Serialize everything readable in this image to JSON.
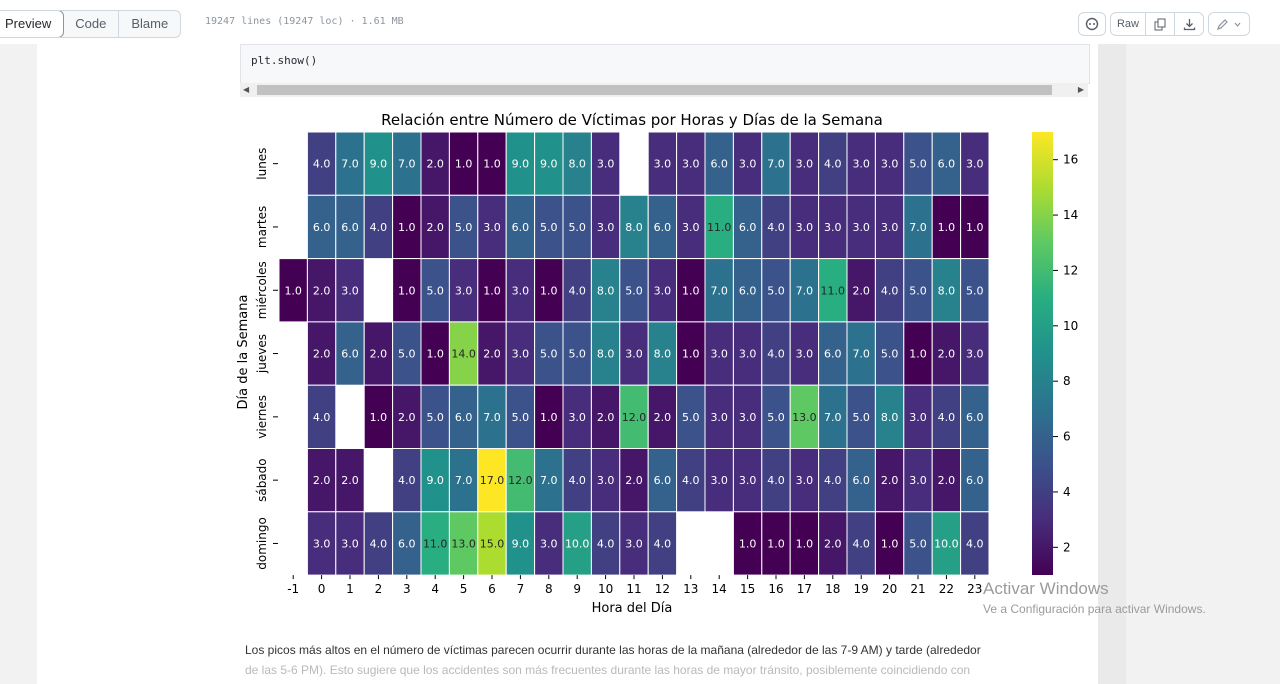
{
  "toolbar": {
    "tabs": [
      "Preview",
      "Code",
      "Blame"
    ],
    "file_info": "19247 lines (19247 loc) · 1.61 MB",
    "raw_label": "Raw"
  },
  "code_cell": {
    "text": "plt.show()"
  },
  "chart_data": {
    "type": "heatmap",
    "title": "Relación entre Número de Víctimas por Horas y Días de la Semana",
    "xlabel": "Hora del Día",
    "ylabel": "Día de la Semana",
    "x": [
      "-1",
      "0",
      "1",
      "2",
      "3",
      "4",
      "5",
      "6",
      "7",
      "8",
      "9",
      "10",
      "11",
      "12",
      "13",
      "14",
      "15",
      "16",
      "17",
      "18",
      "19",
      "20",
      "21",
      "22",
      "23"
    ],
    "y": [
      "lunes",
      "martes",
      "miércoles",
      "jueves",
      "viernes",
      "sábado",
      "domingo"
    ],
    "values": [
      [
        null,
        4,
        7,
        9,
        7,
        2,
        1,
        1,
        9,
        9,
        8,
        3,
        null,
        3,
        3,
        6,
        3,
        7,
        3,
        4,
        3,
        3,
        5,
        6,
        3
      ],
      [
        null,
        6,
        6,
        4,
        1,
        2,
        5,
        3,
        6,
        5,
        5,
        3,
        8,
        6,
        3,
        11,
        6,
        4,
        3,
        3,
        3,
        3,
        7,
        1,
        1
      ],
      [
        1,
        2,
        3,
        null,
        1,
        5,
        3,
        1,
        3,
        1,
        4,
        8,
        5,
        3,
        1,
        7,
        6,
        5,
        7,
        11,
        2,
        4,
        5,
        8,
        5
      ],
      [
        null,
        2,
        6,
        2,
        5,
        1,
        14,
        2,
        3,
        5,
        5,
        8,
        3,
        8,
        1,
        3,
        3,
        4,
        3,
        6,
        7,
        5,
        1,
        2,
        3
      ],
      [
        null,
        4,
        null,
        1,
        2,
        5,
        6,
        7,
        5,
        1,
        3,
        2,
        12,
        2,
        5,
        3,
        3,
        5,
        13,
        7,
        5,
        8,
        3,
        4,
        6
      ],
      [
        null,
        2,
        2,
        null,
        4,
        9,
        7,
        17,
        12,
        7,
        4,
        3,
        2,
        6,
        4,
        3,
        3,
        4,
        3,
        4,
        6,
        2,
        3,
        2,
        6
      ],
      [
        null,
        3,
        3,
        4,
        6,
        11,
        13,
        15,
        9,
        3,
        10,
        4,
        3,
        4,
        null,
        null,
        1,
        1,
        1,
        2,
        4,
        1,
        5,
        10,
        4
      ]
    ],
    "colorbar": {
      "min": 1,
      "max": 17,
      "ticks": [
        2,
        4,
        6,
        8,
        10,
        12,
        14,
        16
      ],
      "colormap": "viridis"
    }
  },
  "paragraph": {
    "line1": "Los picos más altos en el número de víctimas parecen ocurrir durante las horas de la mañana (alrededor de las 7-9 AM) y tarde (alrededor",
    "line2": "de las 5-6 PM). Esto sugiere que los accidentes son más frecuentes durante las horas de mayor tránsito, posiblemente coincidiendo con"
  },
  "watermark": {
    "line1": "Activar Windows",
    "line2": "Ve a Configuración para activar Windows."
  }
}
